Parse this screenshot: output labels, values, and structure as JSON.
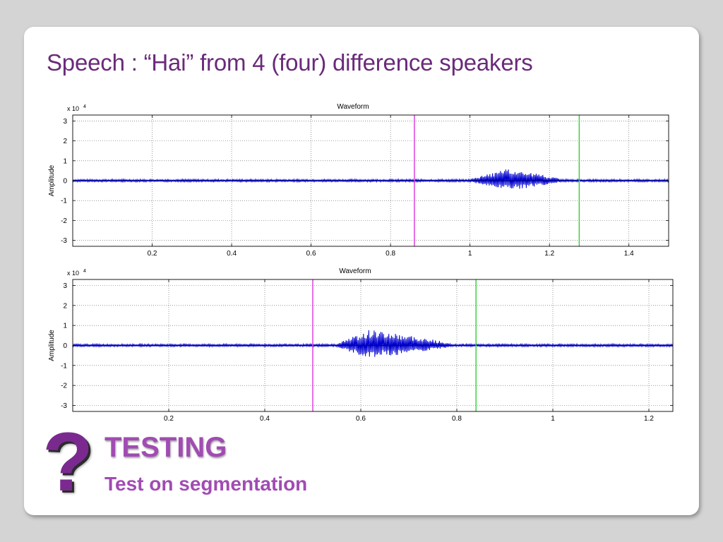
{
  "slide": {
    "title": "Speech : “Hai” from 4 (four) difference speakers",
    "question_mark": "?",
    "heading": "TESTING",
    "subheading": "Test on segmentation",
    "colors": {
      "title": "#6a2a7a",
      "heading": "#a14bb3",
      "waveform": "#0000d0",
      "marker_start": "#e040e0",
      "marker_end": "#40d040"
    }
  },
  "chart_data": [
    {
      "type": "line",
      "title": "Waveform",
      "ylabel": "Amplitude",
      "xlabel": "",
      "exponent_label": "x 10",
      "exponent_power": "4",
      "xlim": [
        0,
        1.5
      ],
      "ylim": [
        -3.3,
        3.3
      ],
      "xticks": [
        0.2,
        0.4,
        0.6,
        0.8,
        1,
        1.2,
        1.4
      ],
      "yticks": [
        3,
        2,
        1,
        0,
        -1,
        -2,
        -3
      ],
      "grid": true,
      "markers": [
        {
          "x": 0.86,
          "color": "#e040e0"
        },
        {
          "x": 1.275,
          "color": "#40d040"
        }
      ],
      "speech_segment": {
        "start": 1.0,
        "peak": 1.1,
        "end": 1.23,
        "peak_amplitude": 0.55
      }
    },
    {
      "type": "line",
      "title": "Waveform",
      "ylabel": "Amplitude",
      "xlabel": "",
      "exponent_label": "x 10",
      "exponent_power": "4",
      "xlim": [
        0,
        1.25
      ],
      "ylim": [
        -3.3,
        3.3
      ],
      "xticks": [
        0.2,
        0.4,
        0.6,
        0.8,
        1,
        1.2
      ],
      "yticks": [
        3,
        2,
        1,
        0,
        -1,
        -2,
        -3
      ],
      "grid": true,
      "markers": [
        {
          "x": 0.5,
          "color": "#e040e0"
        },
        {
          "x": 0.84,
          "color": "#40d040"
        }
      ],
      "speech_segment": {
        "start": 0.55,
        "peak": 0.62,
        "end": 0.79,
        "peak_amplitude": 0.75
      }
    }
  ]
}
